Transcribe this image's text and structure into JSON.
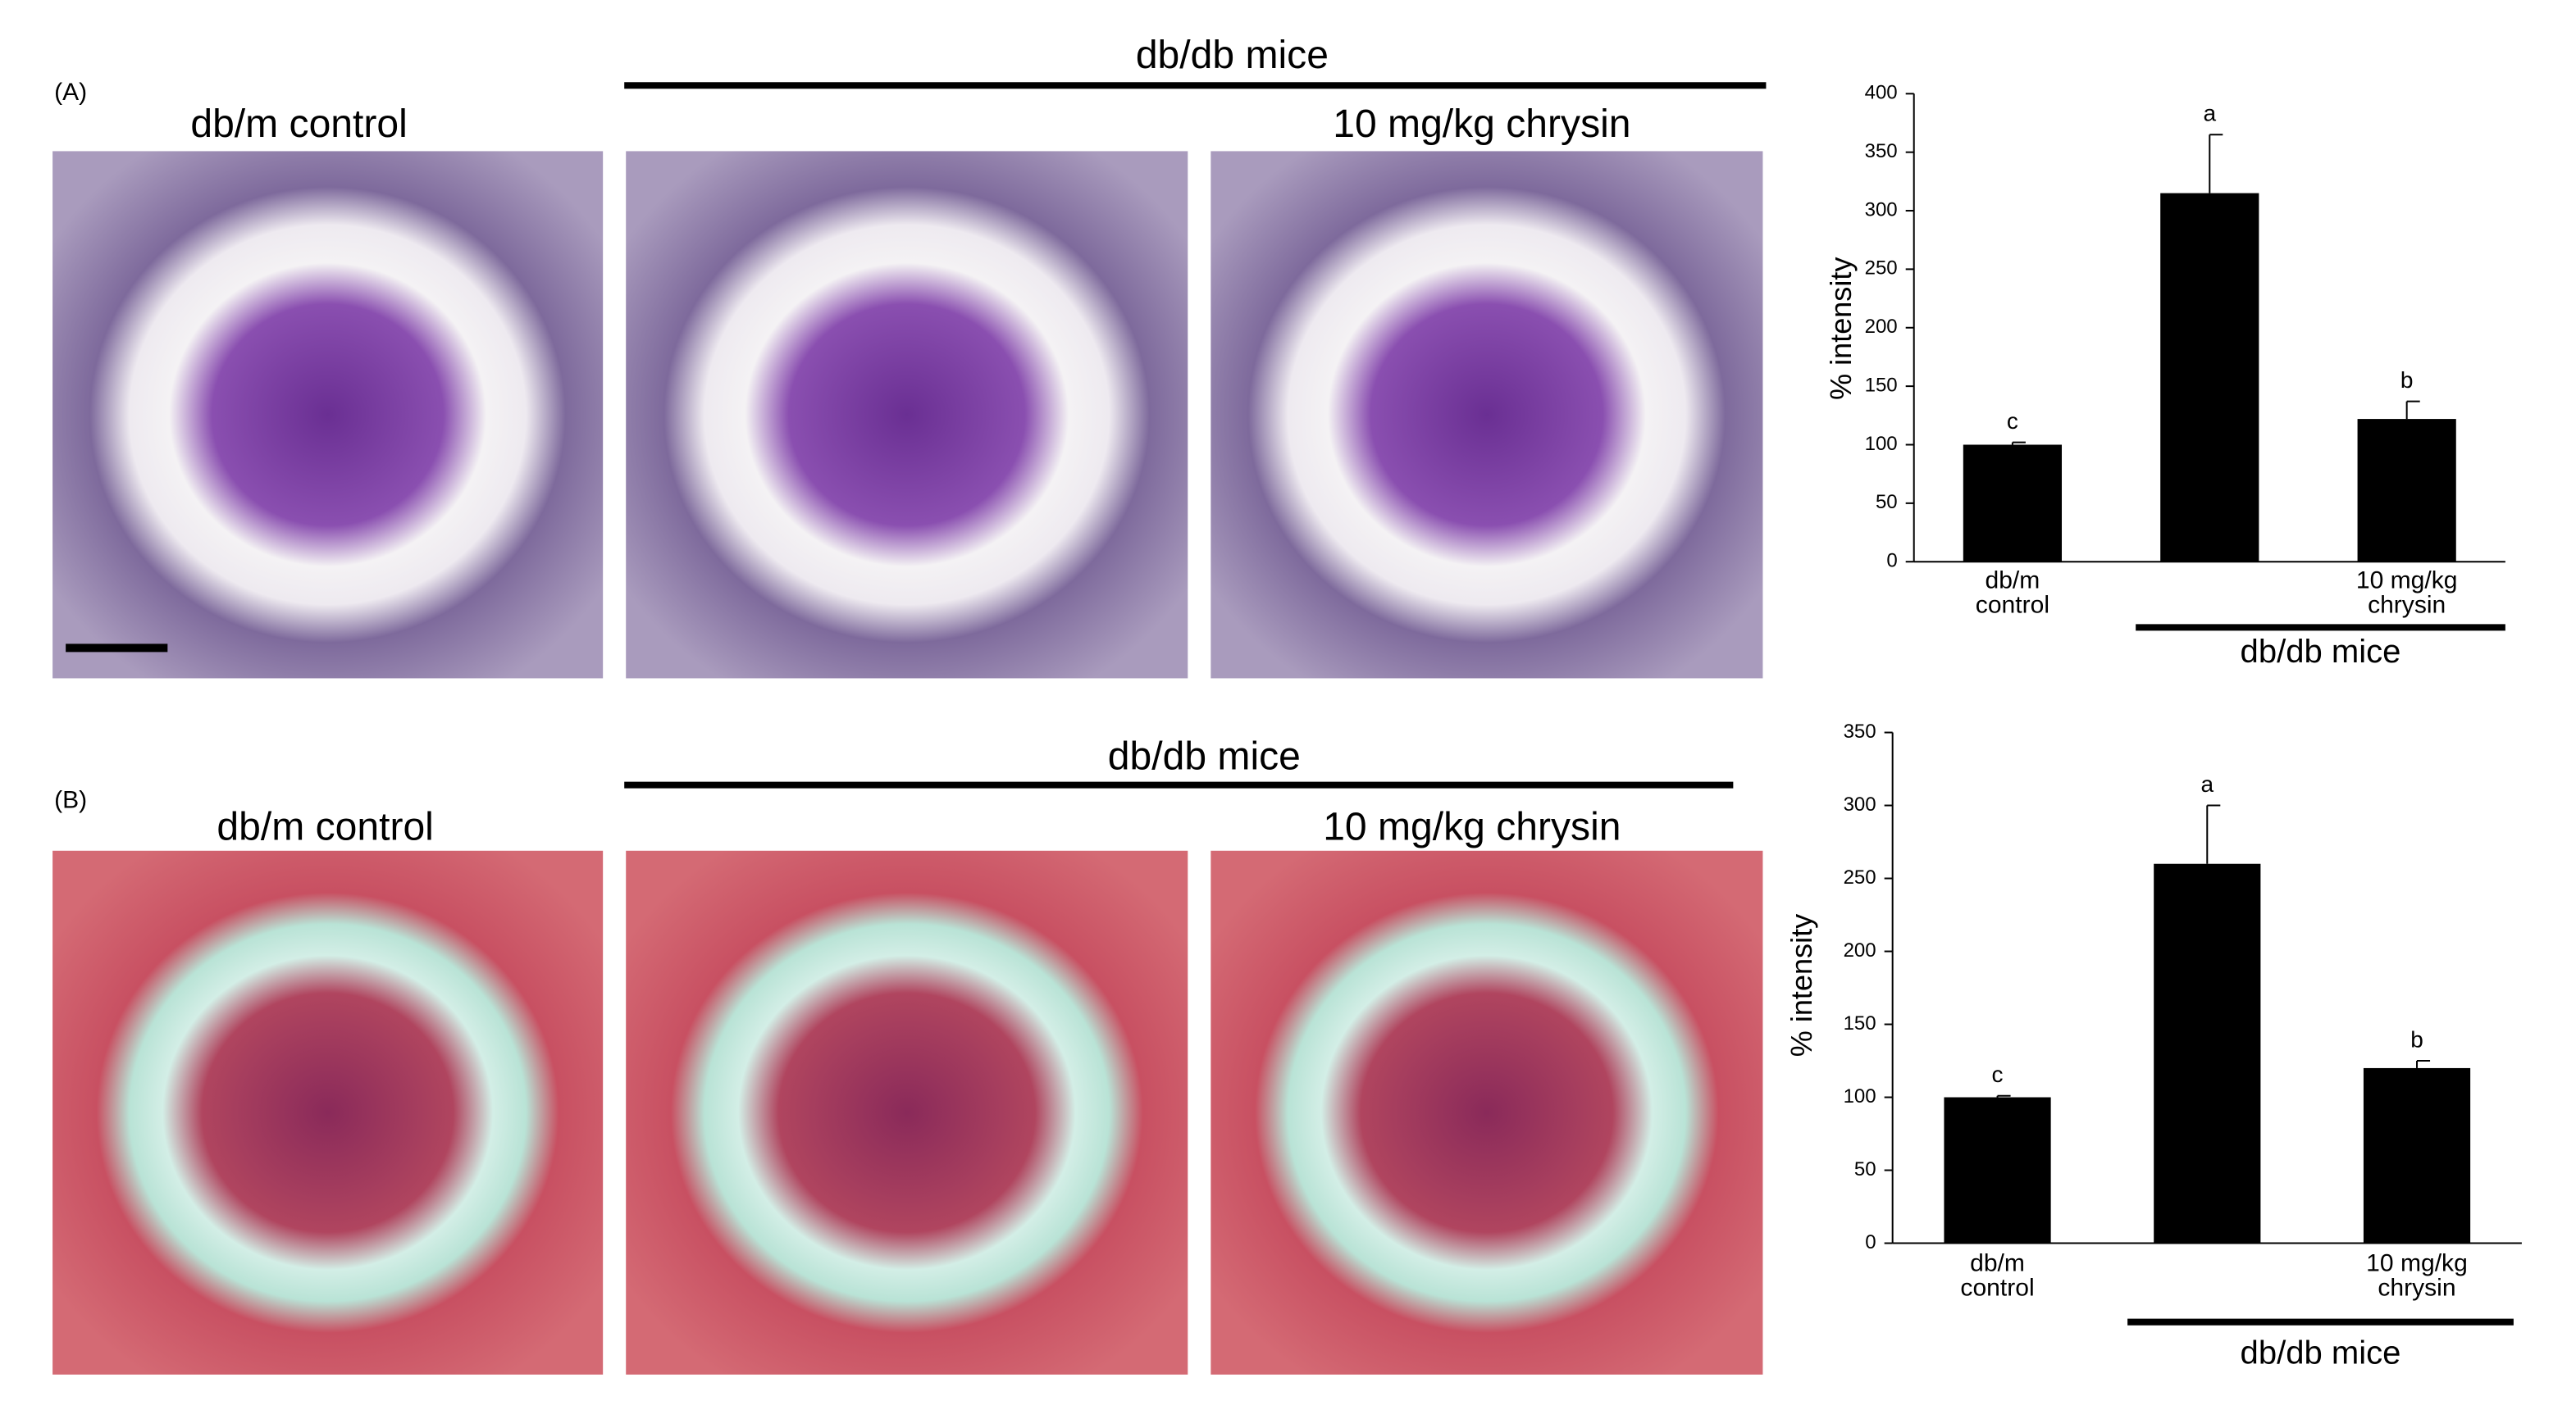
{
  "figure": {
    "panels": [
      {
        "label": "(A)",
        "group_title": "db/db mice",
        "image_labels": [
          "db/m control",
          "10 mg/kg chrysin"
        ]
      },
      {
        "label": "(B)",
        "group_title": "db/db mice",
        "image_labels": [
          "db/m control",
          "10 mg/kg chrysin"
        ]
      }
    ]
  },
  "chart_data": [
    {
      "type": "bar",
      "y_label": "% intensity",
      "categories": [
        "db/m control",
        null,
        "10 mg/kg chrysin"
      ],
      "values": [
        100,
        315,
        122
      ],
      "errors": [
        2,
        50,
        15
      ],
      "significance": [
        "c",
        "a",
        "b"
      ],
      "group_label": "db/db mice",
      "color": "#000000",
      "ylim": [
        0,
        400
      ],
      "yticks": [
        0,
        50,
        100,
        150,
        200,
        250,
        300,
        350,
        400
      ],
      "grid": false
    },
    {
      "type": "bar",
      "y_label": "% intensity",
      "categories": [
        "db/m control",
        null,
        "10 mg/kg chrysin"
      ],
      "values": [
        100,
        260,
        120
      ],
      "errors": [
        1,
        40,
        5
      ],
      "significance": [
        "c",
        "a",
        "b"
      ],
      "group_label": "db/db mice",
      "color": "#000000",
      "ylim": [
        0,
        350
      ],
      "yticks": [
        0,
        50,
        100,
        150,
        200,
        250,
        300,
        350
      ],
      "grid": false
    }
  ]
}
